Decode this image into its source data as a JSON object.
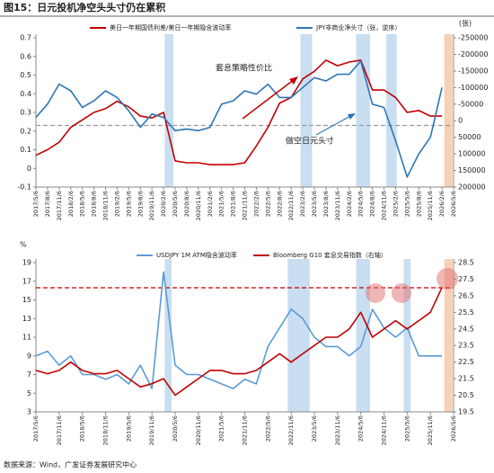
{
  "title": "图15：日元投机净空头头寸仍在累积",
  "source": "数据来源：Wind，广发证券发展研究中心",
  "chart_data": [
    {
      "type": "line",
      "categories": [
        "2017/5/6",
        "2017/8/6",
        "2017/11/6",
        "2018/2/6",
        "2018/5/6",
        "2018/8/6",
        "2018/11/6",
        "2019/2/6",
        "2019/5/6",
        "2019/8/6",
        "2019/11/6",
        "2020/2/6",
        "2020/5/6",
        "2020/8/6",
        "2020/11/6",
        "2021/2/6",
        "2021/5/6",
        "2021/8/6",
        "2021/11/6",
        "2022/2/6",
        "2022/5/6",
        "2022/8/6",
        "2022/11/6",
        "2023/2/6",
        "2023/5/6",
        "2023/8/6",
        "2023/11/6",
        "2024/2/6",
        "2024/5/6",
        "2024/8/6",
        "2024/11/6",
        "2025/2/6",
        "2025/5/6",
        "2025/8/6",
        "2025/11/6",
        "2026/2/6",
        "2026/5/6"
      ],
      "series": [
        {
          "name": "美日一年期国债利差/美日一年期隐含波动率",
          "color": "#c00000",
          "values": [
            0.07,
            0.1,
            0.14,
            0.22,
            0.26,
            0.3,
            0.32,
            0.36,
            0.33,
            0.28,
            0.27,
            0.3,
            0.04,
            0.03,
            0.03,
            0.02,
            0.02,
            0.02,
            0.03,
            0.12,
            0.22,
            0.35,
            0.38,
            0.48,
            0.52,
            0.58,
            0.55,
            0.57,
            0.58,
            0.42,
            0.42,
            0.38,
            0.3,
            0.31,
            0.28,
            0.28,
            null
          ]
        },
        {
          "name": "JPY非商业净头寸（张，逆序）",
          "color": "#2e75b6",
          "axis": "y2",
          "values": [
            -10000,
            -50000,
            -110000,
            -90000,
            -40000,
            -60000,
            -90000,
            -70000,
            -30000,
            20000,
            -20000,
            -10000,
            30000,
            25000,
            30000,
            20000,
            -50000,
            -60000,
            -90000,
            -80000,
            -110000,
            -70000,
            -70000,
            -100000,
            -130000,
            -120000,
            -140000,
            -140000,
            -180000,
            -50000,
            -40000,
            60000,
            170000,
            100000,
            50000,
            -100000,
            null
          ]
        }
      ],
      "ylim": [
        -0.1,
        0.7
      ],
      "yticks": [
        -0.1,
        0,
        0.1,
        0.2,
        0.3,
        0.4,
        0.5,
        0.6,
        0.7
      ],
      "y2lim": [
        200000,
        -250000
      ],
      "y2ticks": [
        -250000,
        -200000,
        -150000,
        -100000,
        -50000,
        0,
        50000,
        100000,
        150000,
        200000
      ],
      "y2_unit": "(张)",
      "reference_line": 0.23,
      "annotations": [
        {
          "text": "套息策略性价比",
          "color": "#c00000"
        },
        {
          "text": "做空日元头寸",
          "color": "#2e75b6"
        }
      ]
    },
    {
      "type": "line",
      "y_unit": "%",
      "categories": [
        "2017/5/6",
        null,
        "2017/11/6",
        null,
        "2018/5/6",
        null,
        "2018/11/6",
        null,
        "2019/5/6",
        null,
        "2019/11/6",
        null,
        "2020/5/6",
        null,
        "2020/11/6",
        null,
        "2021/5/6",
        null,
        "2021/11/6",
        null,
        "2022/5/6",
        null,
        "2022/11/6",
        null,
        "2023/5/6",
        null,
        "2023/11/6",
        null,
        "2024/5/6",
        null,
        "2024/11/6",
        null,
        "2025/5/6",
        null,
        "2025/11/6",
        null,
        "2026/5/6"
      ],
      "series": [
        {
          "name": "USDJPY 1M ATM隐含波动率",
          "color": "#5b9bd5",
          "values": [
            9,
            9.5,
            8,
            9,
            7,
            7,
            6.5,
            7,
            6,
            8,
            5.5,
            18,
            8,
            7,
            7,
            6.5,
            6,
            5.5,
            6.5,
            6,
            10,
            12,
            14,
            13,
            11,
            10,
            10,
            9,
            10,
            14,
            12,
            11,
            12,
            9,
            9,
            9,
            null
          ]
        },
        {
          "name": "Bloomberg G10 套息交易指数（右轴）",
          "color": "#c00000",
          "axis": "y2",
          "values": [
            22.0,
            21.8,
            22.0,
            22.5,
            22.0,
            21.8,
            21.8,
            22.0,
            21.5,
            21.0,
            21.2,
            21.5,
            20.5,
            21.0,
            21.5,
            22.0,
            22.0,
            21.8,
            21.8,
            22.0,
            22.5,
            23.0,
            22.5,
            23.0,
            23.5,
            24.0,
            24.0,
            24.5,
            25.5,
            24.0,
            24.5,
            25.0,
            24.5,
            25.0,
            25.5,
            27.0,
            null
          ]
        }
      ],
      "ylim": [
        3,
        19
      ],
      "yticks": [
        3,
        5,
        7,
        9,
        11,
        13,
        15,
        17,
        19
      ],
      "y2lim": [
        19.5,
        28.5
      ],
      "y2ticks": [
        19.5,
        20.5,
        21.5,
        22.5,
        23.5,
        24.5,
        25.5,
        26.5,
        27.5,
        28.5
      ],
      "reference_line": 16.3
    }
  ]
}
